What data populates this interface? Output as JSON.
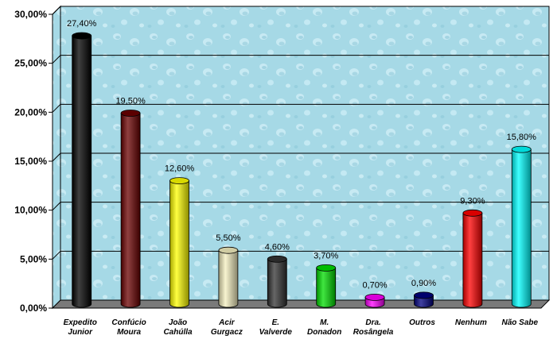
{
  "chart_data": {
    "type": "bar",
    "title": "",
    "xlabel": "",
    "ylabel": "",
    "ylim": [
      0,
      30
    ],
    "yticks": [
      "0,00%",
      "5,00%",
      "10,00%",
      "15,00%",
      "20,00%",
      "25,00%",
      "30,00%"
    ],
    "grid": true,
    "legend": "none",
    "categories": [
      [
        "Expedito",
        "Junior"
      ],
      [
        "Confúcio",
        "Moura"
      ],
      [
        "João",
        "Cahúlla"
      ],
      [
        "Acir",
        "Gurgacz"
      ],
      [
        "E.",
        "Valverde"
      ],
      [
        "M.",
        "Donadon"
      ],
      [
        "Dra.",
        "Rosângela"
      ],
      [
        "Outros"
      ],
      [
        "Nenhum"
      ],
      [
        "Não Sabe"
      ]
    ],
    "values": [
      27.4,
      19.5,
      12.6,
      5.5,
      4.6,
      3.7,
      0.7,
      0.9,
      9.3,
      15.8
    ],
    "labels": [
      "27,40%",
      "19,50%",
      "12,60%",
      "5,50%",
      "4,60%",
      "3,70%",
      "0,70%",
      "0,90%",
      "9,30%",
      "15,80%"
    ],
    "colors": [
      "#000000",
      "#6b0000",
      "#ffff00",
      "#f5f0c0",
      "#333333",
      "#00dd00",
      "#ff00ff",
      "#000080",
      "#ff0000",
      "#00ffff"
    ],
    "plot_background": "#a8dce8"
  }
}
